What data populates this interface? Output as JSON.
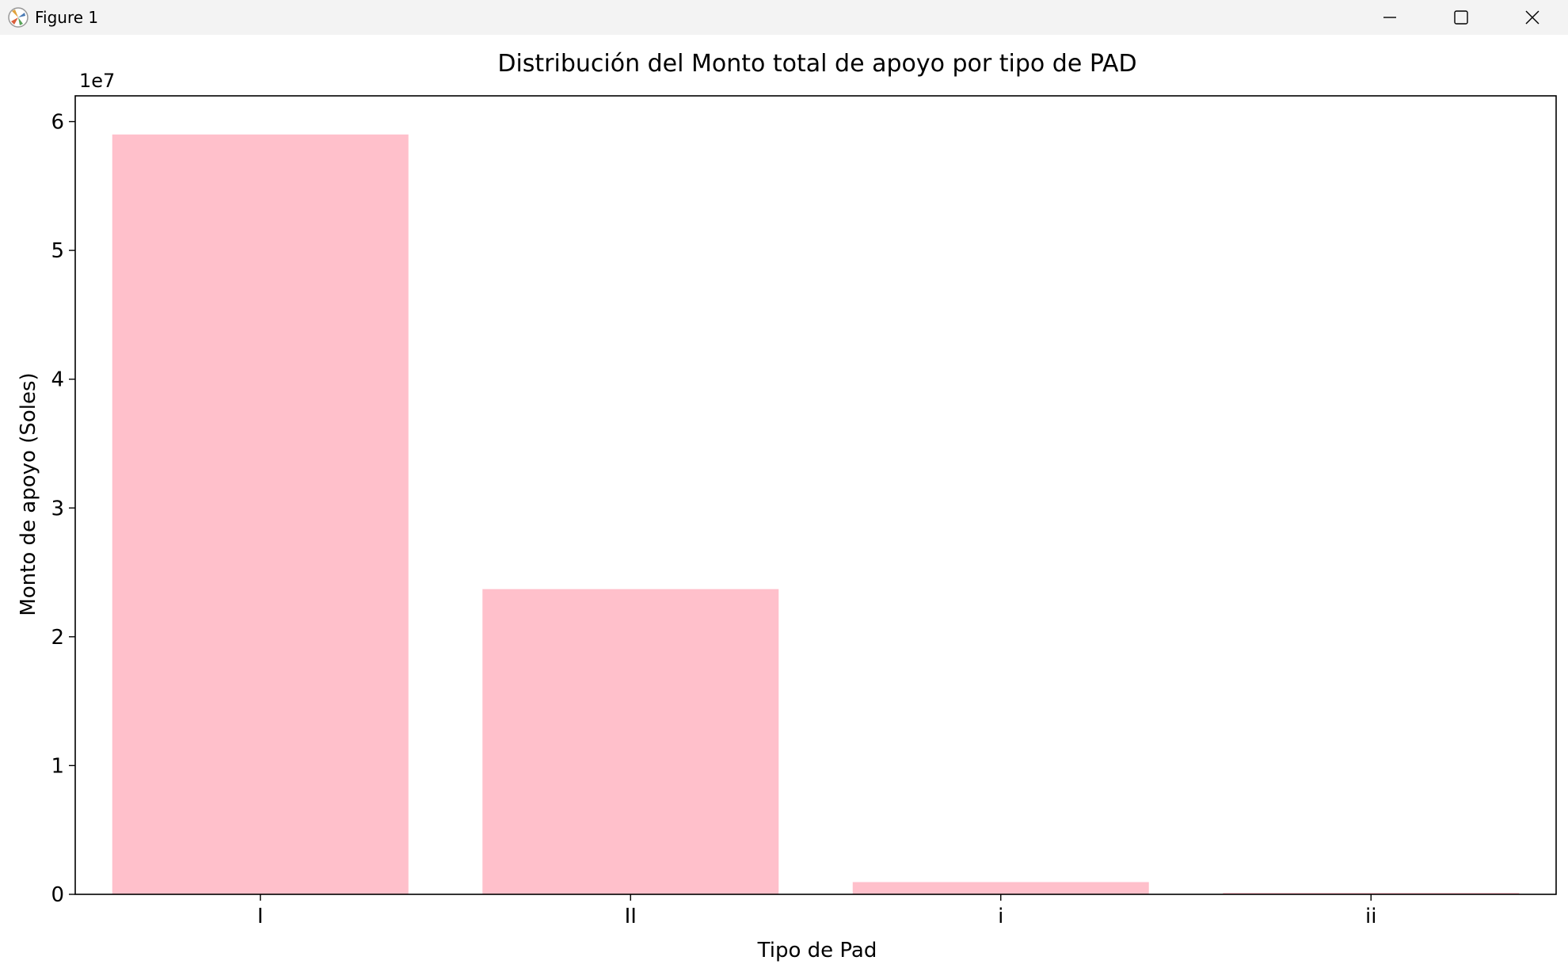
{
  "window": {
    "title": "Figure 1",
    "icons": [
      "matplotlib-logo-icon",
      "minimize-icon",
      "maximize-icon",
      "close-icon"
    ]
  },
  "chart_data": {
    "type": "bar",
    "title": "Distribución del Monto total de apoyo por tipo de PAD",
    "xlabel": "Tipo de Pad",
    "ylabel": "Monto de apoyo (Soles)",
    "offset_label": "1e7",
    "categories": [
      "I",
      "II",
      "i",
      "ii"
    ],
    "values": [
      59000000,
      23700000,
      950000,
      120000
    ],
    "ylim": [
      0,
      62000000
    ],
    "yticks": [
      0,
      10000000,
      20000000,
      30000000,
      40000000,
      50000000,
      60000000
    ],
    "ytick_labels": [
      "0",
      "1",
      "2",
      "3",
      "4",
      "5",
      "6"
    ],
    "bar_color": "#ffc0cb",
    "grid": false,
    "legend": false
  }
}
